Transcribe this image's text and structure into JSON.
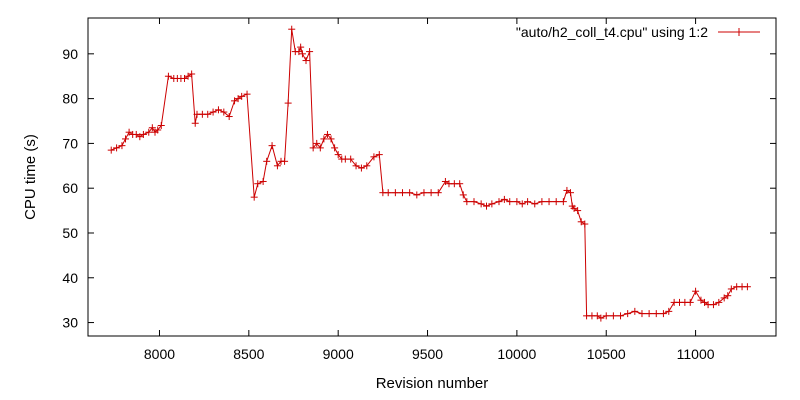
{
  "chart_data": {
    "type": "line",
    "title": "",
    "xlabel": "Revision number",
    "ylabel": "CPU time (s)",
    "xlim": [
      7600,
      11450
    ],
    "ylim": [
      27,
      98
    ],
    "x_ticks": [
      "8000",
      "8500",
      "9000",
      "9500",
      "10000",
      "10500",
      "11000"
    ],
    "y_ticks": [
      "30",
      "40",
      "50",
      "60",
      "70",
      "80",
      "90"
    ],
    "grid": false,
    "legend_position": "top-right",
    "series": [
      {
        "name": "\"auto/h2_coll_t4.cpu\" using 1:2",
        "color": "#cc0000",
        "marker": "plus",
        "points": [
          [
            7730,
            68.5
          ],
          [
            7760,
            69
          ],
          [
            7790,
            69.5
          ],
          [
            7810,
            71
          ],
          [
            7830,
            72.5
          ],
          [
            7850,
            72
          ],
          [
            7870,
            72
          ],
          [
            7890,
            71.5
          ],
          [
            7910,
            72
          ],
          [
            7940,
            72.5
          ],
          [
            7960,
            73.5
          ],
          [
            7975,
            72.5
          ],
          [
            7990,
            73
          ],
          [
            8010,
            74
          ],
          [
            8050,
            85
          ],
          [
            8080,
            84.5
          ],
          [
            8100,
            84.5
          ],
          [
            8120,
            84.5
          ],
          [
            8140,
            84.5
          ],
          [
            8160,
            85
          ],
          [
            8180,
            85.5
          ],
          [
            8200,
            74.5
          ],
          [
            8210,
            76.5
          ],
          [
            8240,
            76.5
          ],
          [
            8270,
            76.5
          ],
          [
            8300,
            77
          ],
          [
            8330,
            77.5
          ],
          [
            8360,
            77
          ],
          [
            8390,
            76
          ],
          [
            8420,
            79.5
          ],
          [
            8440,
            80
          ],
          [
            8460,
            80.5
          ],
          [
            8490,
            81
          ],
          [
            8530,
            58
          ],
          [
            8550,
            61
          ],
          [
            8580,
            61.5
          ],
          [
            8600,
            66
          ],
          [
            8630,
            69.5
          ],
          [
            8660,
            65
          ],
          [
            8680,
            66
          ],
          [
            8700,
            66
          ],
          [
            8720,
            79
          ],
          [
            8740,
            95.5
          ],
          [
            8760,
            90.5
          ],
          [
            8780,
            90.5
          ],
          [
            8790,
            91.5
          ],
          [
            8800,
            90
          ],
          [
            8820,
            88.5
          ],
          [
            8840,
            90.5
          ],
          [
            8860,
            69
          ],
          [
            8880,
            70
          ],
          [
            8900,
            69
          ],
          [
            8920,
            71
          ],
          [
            8940,
            72
          ],
          [
            8960,
            71
          ],
          [
            8980,
            69
          ],
          [
            9000,
            67.5
          ],
          [
            9020,
            66.5
          ],
          [
            9040,
            66.5
          ],
          [
            9070,
            66.5
          ],
          [
            9100,
            65
          ],
          [
            9130,
            64.5
          ],
          [
            9160,
            65
          ],
          [
            9200,
            67
          ],
          [
            9230,
            67.5
          ],
          [
            9250,
            59
          ],
          [
            9280,
            59
          ],
          [
            9320,
            59
          ],
          [
            9360,
            59
          ],
          [
            9400,
            59
          ],
          [
            9440,
            58.5
          ],
          [
            9480,
            59
          ],
          [
            9520,
            59
          ],
          [
            9560,
            59
          ],
          [
            9600,
            61.5
          ],
          [
            9620,
            61
          ],
          [
            9650,
            61
          ],
          [
            9680,
            61
          ],
          [
            9700,
            58.5
          ],
          [
            9720,
            57
          ],
          [
            9760,
            57
          ],
          [
            9800,
            56.5
          ],
          [
            9830,
            56
          ],
          [
            9860,
            56.5
          ],
          [
            9900,
            57
          ],
          [
            9930,
            57.5
          ],
          [
            9960,
            57
          ],
          [
            10000,
            57
          ],
          [
            10030,
            56.5
          ],
          [
            10060,
            57
          ],
          [
            10100,
            56.5
          ],
          [
            10140,
            57
          ],
          [
            10180,
            57
          ],
          [
            10220,
            57
          ],
          [
            10260,
            57
          ],
          [
            10280,
            59.5
          ],
          [
            10300,
            59
          ],
          [
            10310,
            56
          ],
          [
            10320,
            55.5
          ],
          [
            10340,
            55
          ],
          [
            10360,
            52.5
          ],
          [
            10380,
            52
          ],
          [
            10390,
            31.5
          ],
          [
            10420,
            31.5
          ],
          [
            10450,
            31.5
          ],
          [
            10470,
            31
          ],
          [
            10500,
            31.5
          ],
          [
            10540,
            31.5
          ],
          [
            10580,
            31.5
          ],
          [
            10620,
            32
          ],
          [
            10660,
            32.5
          ],
          [
            10700,
            32
          ],
          [
            10740,
            32
          ],
          [
            10780,
            32
          ],
          [
            10820,
            32
          ],
          [
            10850,
            32.5
          ],
          [
            10880,
            34.5
          ],
          [
            10910,
            34.5
          ],
          [
            10940,
            34.5
          ],
          [
            10970,
            34.5
          ],
          [
            11000,
            37
          ],
          [
            11030,
            35
          ],
          [
            11050,
            34.5
          ],
          [
            11070,
            34
          ],
          [
            11100,
            34
          ],
          [
            11130,
            34.5
          ],
          [
            11160,
            35.5
          ],
          [
            11180,
            36
          ],
          [
            11200,
            37.5
          ],
          [
            11230,
            38
          ],
          [
            11260,
            38
          ],
          [
            11290,
            38
          ]
        ]
      }
    ]
  }
}
